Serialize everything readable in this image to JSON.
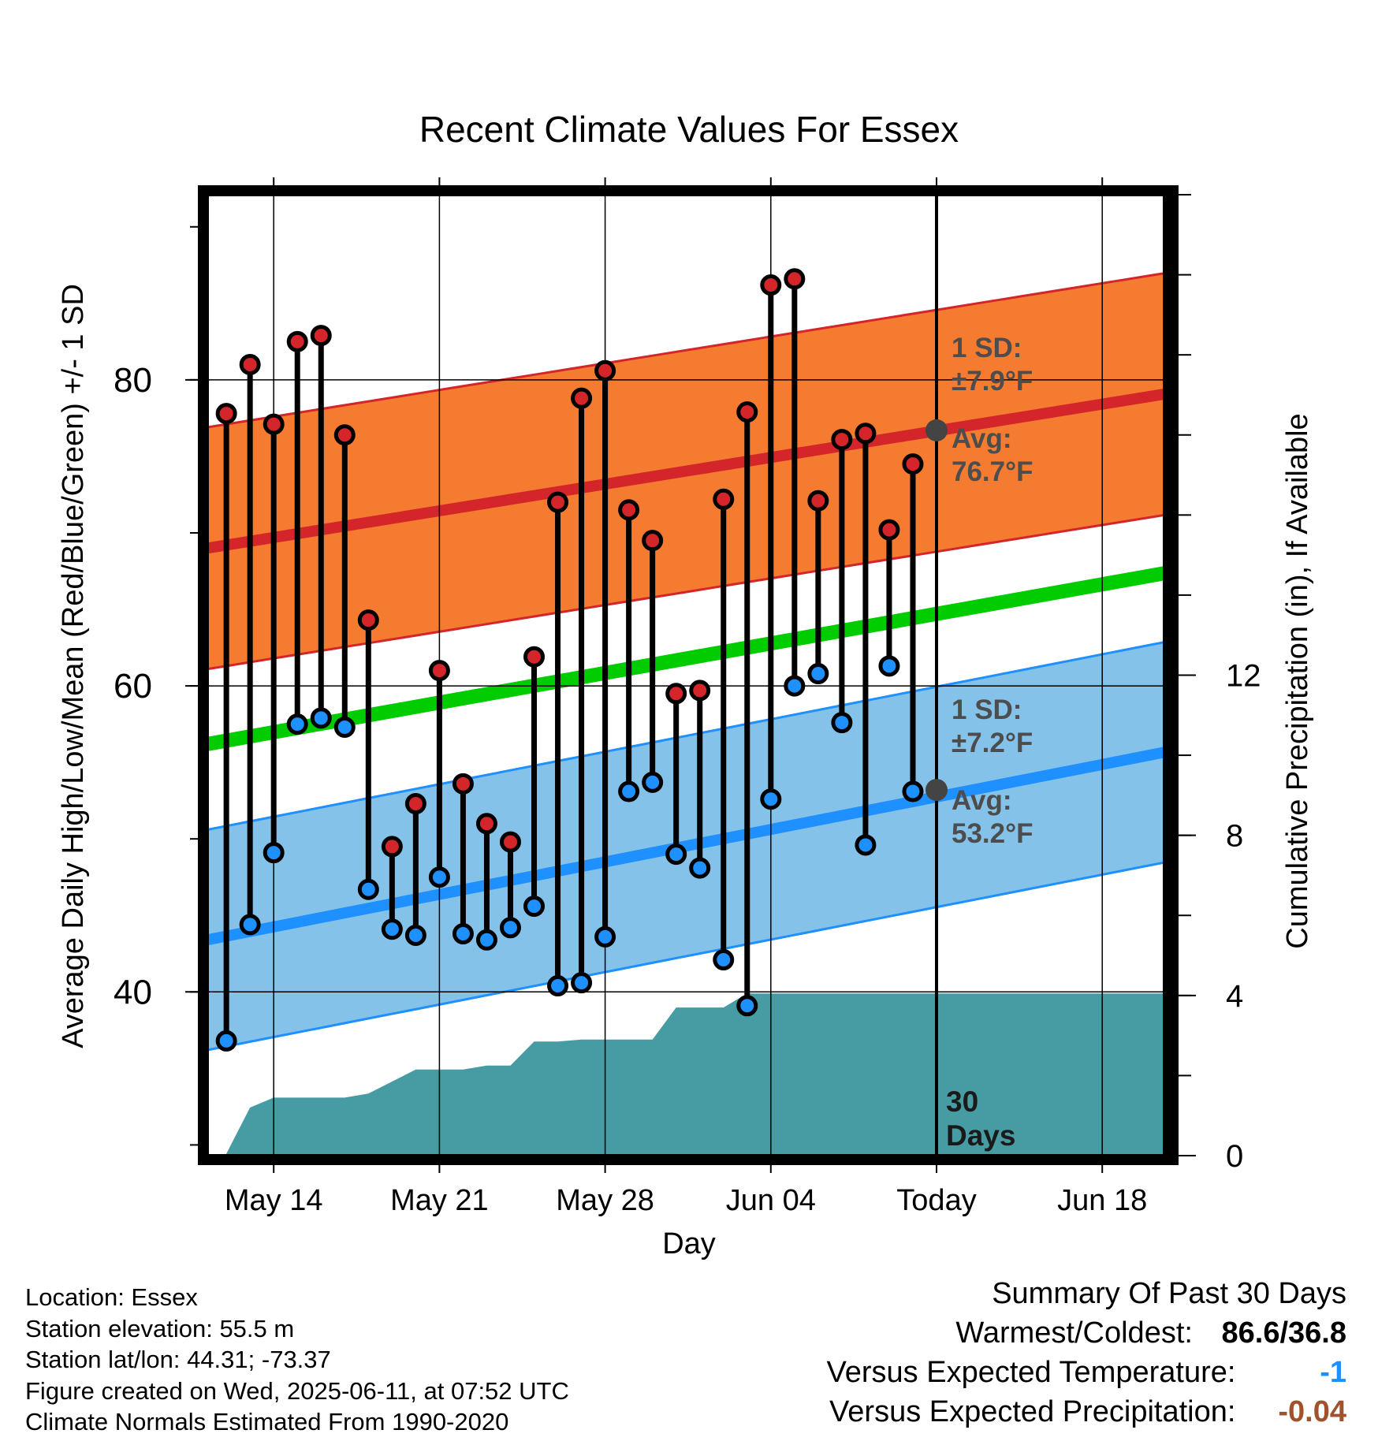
{
  "chart_data": {
    "type": "line",
    "title": "Recent Climate Values For Essex",
    "xlabel": "Day",
    "ylabel_left": "Average Daily High/Low/Mean (Red/Blue/Green) +/- 1 SD",
    "ylabel_right": "Cumulative Precipitation (in), If Available",
    "x_ticks": [
      "May 14",
      "May 21",
      "May 28",
      "Jun 04",
      "Today",
      "Jun 18"
    ],
    "y_left_ticks": [
      40,
      60,
      80
    ],
    "y_left_range": [
      29.3,
      92.1
    ],
    "y_right_ticks": [
      0,
      4,
      8,
      12
    ],
    "y_right_range": [
      0,
      24
    ],
    "day_range": [
      -38,
      -1
    ],
    "x_dates": [
      "2025-05-11",
      "2025-06-22"
    ],
    "today": "2025-06-11",
    "days": [
      "2025-05-11",
      "2025-05-12",
      "2025-05-13",
      "2025-05-14",
      "2025-05-15",
      "2025-05-16",
      "2025-05-17",
      "2025-05-18",
      "2025-05-19",
      "2025-05-20",
      "2025-05-21",
      "2025-05-22",
      "2025-05-23",
      "2025-05-24",
      "2025-05-25",
      "2025-05-26",
      "2025-05-27",
      "2025-05-28",
      "2025-05-29",
      "2025-05-30",
      "2025-05-31",
      "2025-06-01",
      "2025-06-02",
      "2025-06-03",
      "2025-06-04",
      "2025-06-05",
      "2025-06-06",
      "2025-06-07",
      "2025-06-08",
      "2025-06-09",
      "2025-06-10",
      "2025-06-11",
      "2025-06-12",
      "2025-06-13",
      "2025-06-14",
      "2025-06-15",
      "2025-06-16",
      "2025-06-17",
      "2025-06-18",
      "2025-06-19",
      "2025-06-20",
      "2025-06-21",
      "2025-06-22"
    ],
    "daily_high": [
      77.8,
      81.0,
      77.1,
      82.5,
      82.9,
      76.4,
      64.3,
      49.5,
      52.3,
      61.0,
      53.6,
      51.0,
      49.8,
      61.9,
      72.0,
      78.8,
      80.6,
      71.5,
      69.5,
      59.5,
      59.7,
      72.2,
      77.9,
      86.2,
      86.6,
      72.1,
      76.1,
      76.5,
      70.2,
      74.5
    ],
    "daily_low": [
      36.8,
      44.4,
      49.1,
      57.5,
      57.9,
      57.3,
      46.7,
      44.1,
      43.7,
      47.5,
      43.8,
      43.4,
      44.2,
      45.6,
      40.4,
      40.6,
      43.6,
      53.1,
      53.7,
      49.0,
      48.1,
      42.1,
      39.1,
      52.6,
      60.0,
      60.8,
      57.6,
      49.6,
      61.3,
      53.1
    ],
    "normal_high": {
      "start": 69.0,
      "end": 79.1,
      "sd": 7.9,
      "label_sd": "1 SD:",
      "label_sd_val": "±7.9°F",
      "label_avg": "Avg:",
      "label_avg_val": "76.7°F",
      "today_value": 76.7
    },
    "normal_low": {
      "start": 43.4,
      "end": 55.7,
      "sd": 7.2,
      "label_sd": "1 SD:",
      "label_sd_val": "±7.2°F",
      "label_avg": "Avg:",
      "label_avg_val": "53.2°F",
      "today_value": 53.2
    },
    "normal_mean": {
      "start": 56.2,
      "end": 67.4
    },
    "cumulative_precip": [
      0,
      0,
      0,
      0,
      0,
      0,
      0,
      0,
      0,
      0,
      0,
      0,
      0,
      0,
      0,
      0,
      0,
      0,
      0,
      0,
      0,
      0,
      0,
      0,
      0,
      0,
      0,
      0,
      0,
      0,
      0,
      0,
      0,
      0,
      0,
      0,
      0,
      0.05,
      1.2,
      1.45,
      1.45,
      1.45,
      1.45,
      1.55,
      1.85,
      2.15,
      2.15,
      2.15,
      2.15,
      2.25,
      2.25,
      2.85,
      2.85,
      2.9,
      2.9,
      2.9,
      2.9,
      3.7,
      3.7,
      3.7,
      4.05,
      4.05,
      4.05
    ],
    "precip_days": [
      -30,
      -29,
      -28,
      -27,
      -26,
      -25,
      -24,
      -23,
      -22,
      -21,
      -20,
      -19,
      -18,
      -17,
      -16,
      -15,
      -14,
      -13,
      -12,
      -11,
      -10,
      -9,
      -8,
      -7,
      -6,
      -5,
      -4,
      -3,
      -2,
      -1,
      0
    ],
    "precip_values": [
      0.05,
      1.2,
      1.45,
      1.45,
      1.45,
      1.45,
      1.55,
      1.85,
      2.15,
      2.15,
      2.15,
      2.25,
      2.25,
      2.85,
      2.85,
      2.9,
      2.9,
      2.9,
      2.9,
      3.7,
      3.7,
      3.7,
      4.05,
      4.05,
      4.05,
      4.05,
      4.05,
      4.05,
      4.05,
      4.05,
      4.05
    ],
    "window_label_1": "30",
    "window_label_2": "Days",
    "colors": {
      "high": "#d4262a",
      "low": "#1e90ff",
      "mean": "#00cc00",
      "high_band": "#f47b30",
      "low_band": "#85c2e9",
      "precip": "#479ba3",
      "avg_marker": "#444444"
    }
  },
  "info": {
    "location": "Location: Essex",
    "elevation": "Station elevation: 55.5 m",
    "latlon": "Station lat/lon: 44.31; -73.37",
    "created": "Figure created on Wed, 2025-06-11, at 07:52 UTC",
    "normals": "Climate Normals Estimated From 1990-2020"
  },
  "summary": {
    "title": "Summary Of Past 30 Days",
    "warm_cold_label": "Warmest/Coldest:",
    "warm_cold_value": "86.6/36.8",
    "temp_label": "Versus Expected Temperature:",
    "temp_value": "-1",
    "temp_color": "#1e90ff",
    "precip_label": "Versus Expected Precipitation:",
    "precip_value": "-0.04",
    "precip_color": "#a0522d"
  }
}
